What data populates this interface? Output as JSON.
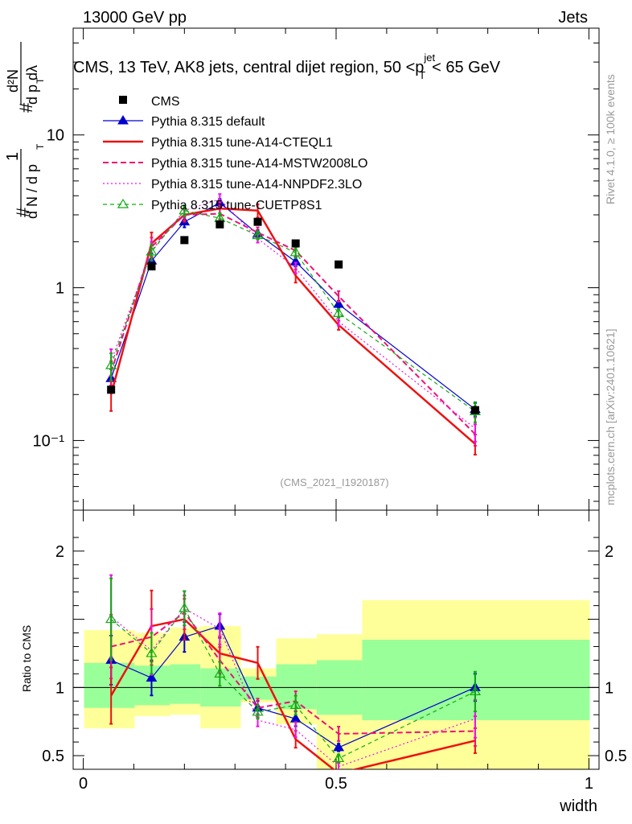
{
  "header": {
    "left": "13000 GeV pp",
    "right": "Jets"
  },
  "chart_data": {
    "type": "line",
    "title": "CMS, 13 TeV, AK8 jets, central dijet region, 50 <",
    "title_pt": "p",
    "title_sup": "jet",
    "title_sub": "T",
    "title_tail": "< 65 GeV",
    "xlabel": "width",
    "ylabel_ratio": "Ratio to CMS",
    "ylabel_main": {
      "frac1_num": "1",
      "frac1_den": "d N / d p",
      "frac2_num": "d²N",
      "frac2_den": "d p  dλ",
      "hash": "#",
      "sub_T": "T"
    },
    "analysis_id": "(CMS_2021_I1920187)",
    "side_label_top": "Rivet 4.1.0, ≥ 100k events",
    "side_label_bottom": "mcplots.cern.ch [arXiv:2401.10621]",
    "xlim": [
      -0.02,
      1.02
    ],
    "ylim_main": [
      0.035,
      50
    ],
    "ylim_ratio": [
      0.4,
      2.3
    ],
    "x_ticks": [
      "0",
      "0.5",
      "1"
    ],
    "x_tick_values": [
      0,
      0.5,
      1
    ],
    "y_ticks_main": [
      "10",
      "1",
      "10⁻¹"
    ],
    "y_tick_values_main": [
      10,
      1,
      0.1
    ],
    "y_ticks_ratio": [
      "2",
      "1",
      "0.5"
    ],
    "y_tick_values_ratio": [
      2,
      1,
      0.5
    ],
    "bins": [
      [
        0,
        0.1
      ],
      [
        0.1,
        0.17
      ],
      [
        0.17,
        0.23
      ],
      [
        0.23,
        0.31
      ],
      [
        0.31,
        0.38
      ],
      [
        0.38,
        0.46
      ],
      [
        0.46,
        0.55
      ],
      [
        0.55,
        1.0
      ]
    ],
    "x": [
      0.055,
      0.135,
      0.2,
      0.27,
      0.345,
      0.42,
      0.505,
      0.775
    ],
    "cms": [
      0.215,
      1.38,
      2.05,
      2.6,
      2.7,
      1.95,
      1.42,
      0.158
    ],
    "band_green": [
      [
        0.85,
        1.18
      ],
      [
        0.87,
        1.16
      ],
      [
        0.88,
        1.17
      ],
      [
        0.86,
        1.14
      ],
      [
        0.91,
        1.08
      ],
      [
        0.84,
        1.17
      ],
      [
        0.8,
        1.2
      ],
      [
        0.76,
        1.35
      ]
    ],
    "band_yellow": [
      [
        0.7,
        1.42
      ],
      [
        0.79,
        1.4
      ],
      [
        0.8,
        1.44
      ],
      [
        0.7,
        1.45
      ],
      [
        0.89,
        1.14
      ],
      [
        0.73,
        1.36
      ],
      [
        0.4,
        1.39
      ],
      [
        0.4,
        1.64
      ]
    ],
    "series": [
      {
        "name": "Pythia 8.315 default",
        "color": "#0000cc",
        "dash": "",
        "marker": "tri-fill",
        "values": [
          0.255,
          1.5,
          2.7,
          3.6,
          2.25,
          1.48,
          0.78,
          0.16
        ],
        "ratio": [
          1.2,
          1.07,
          1.37,
          1.45,
          0.85,
          0.77,
          0.56,
          1.0
        ],
        "err": [
          0.15,
          0.12,
          0.08,
          0.06,
          0.06,
          0.07,
          0.05,
          0.1
        ]
      },
      {
        "name": "Pythia 8.315 tune-A14-CTEQL1",
        "color": "#ee1111",
        "dash": "",
        "marker": "none",
        "values": [
          0.2,
          1.95,
          3.0,
          3.3,
          3.2,
          1.2,
          0.57,
          0.095
        ],
        "ratio": [
          0.94,
          1.45,
          1.5,
          1.25,
          1.18,
          0.62,
          0.37,
          0.61
        ],
        "err": [
          0.22,
          0.18,
          0.1,
          0.1,
          0.1,
          0.1,
          0.07,
          0.15
        ]
      },
      {
        "name": "Pythia 8.315 tune-A14-MSTW2008LO",
        "color": "#ee1177",
        "dash": "7,4",
        "marker": "none",
        "values": [
          0.28,
          1.85,
          3.0,
          3.05,
          2.3,
          1.75,
          0.88,
          0.11
        ],
        "ratio": [
          1.3,
          1.37,
          1.55,
          1.2,
          0.85,
          0.9,
          0.66,
          0.68
        ],
        "err": [
          0.18,
          0.15,
          0.08,
          0.08,
          0.08,
          0.08,
          0.08,
          0.16
        ]
      },
      {
        "name": "Pythia 8.315 tune-A14-NNPDF2.3LO",
        "color": "#ee11ee",
        "dash": "2,3",
        "marker": "none",
        "values": [
          0.33,
          1.75,
          3.2,
          3.8,
          2.1,
          1.35,
          0.6,
          0.12
        ],
        "ratio": [
          1.52,
          1.27,
          1.58,
          1.43,
          0.76,
          0.69,
          0.42,
          0.77
        ],
        "err": [
          0.2,
          0.14,
          0.08,
          0.08,
          0.06,
          0.08,
          0.06,
          0.18
        ]
      },
      {
        "name": "Pythia 8.315 tune-CUETP8S1",
        "color": "#11aa11",
        "dash": "5,4",
        "marker": "tri-open",
        "values": [
          0.31,
          1.72,
          3.2,
          2.85,
          2.2,
          1.7,
          0.68,
          0.155
        ],
        "ratio": [
          1.5,
          1.25,
          1.58,
          1.1,
          0.82,
          0.87,
          0.48,
          0.97
        ],
        "err": [
          0.2,
          0.12,
          0.08,
          0.08,
          0.06,
          0.08,
          0.06,
          0.15
        ]
      }
    ],
    "legend_cms": "CMS",
    "legend_placement": "top-left"
  }
}
